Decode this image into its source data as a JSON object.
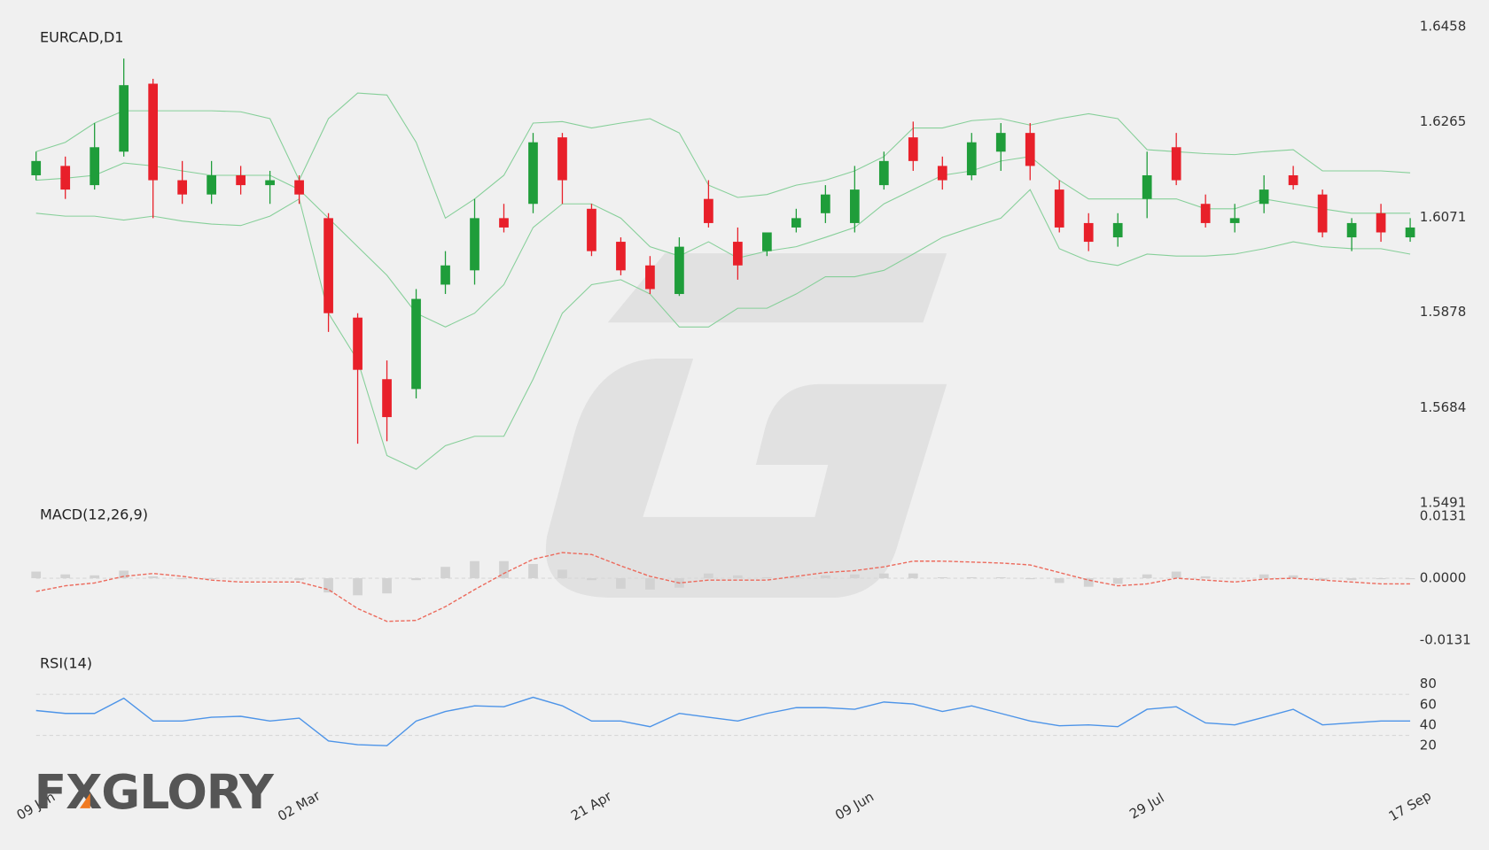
{
  "logo": "FXGLORY",
  "chart_data": [
    {
      "type": "candlestick",
      "title": "EURCAD,D1",
      "categories": [
        "09 Jan",
        null,
        null,
        null,
        null,
        null,
        null,
        null,
        null,
        "02 Mar",
        null,
        null,
        null,
        null,
        null,
        null,
        null,
        null,
        null,
        "21 Apr",
        null,
        null,
        null,
        null,
        null,
        null,
        null,
        null,
        "09 Jun",
        null,
        null,
        null,
        null,
        null,
        null,
        null,
        null,
        null,
        "29 Jul",
        null,
        null,
        null,
        null,
        null,
        null,
        null,
        null,
        "17 Sep"
      ],
      "open": [
        1.6156,
        1.6175,
        1.6136,
        1.6204,
        1.6342,
        1.6146,
        1.6117,
        1.6156,
        1.6136,
        1.6146,
        1.6069,
        1.5867,
        1.5742,
        1.5722,
        1.5934,
        1.5963,
        1.6069,
        1.6098,
        1.6233,
        1.6088,
        1.6021,
        1.5973,
        1.5915,
        1.6108,
        1.6021,
        1.6002,
        1.605,
        1.6079,
        1.6059,
        1.6136,
        1.6233,
        1.6175,
        1.6156,
        1.6204,
        1.6242,
        1.6127,
        1.6059,
        1.603,
        1.6108,
        1.6213,
        1.6098,
        1.6059,
        1.6098,
        1.6156,
        1.6117,
        1.603,
        1.6079,
        1.603
      ],
      "high": [
        1.6204,
        1.6194,
        1.6262,
        1.6393,
        1.6352,
        1.6185,
        1.6185,
        1.6175,
        1.6165,
        1.6156,
        1.6079,
        1.5876,
        1.578,
        1.5925,
        1.6002,
        1.6108,
        1.6098,
        1.6242,
        1.6242,
        1.6098,
        1.603,
        1.5992,
        1.603,
        1.6146,
        1.605,
        1.604,
        1.6088,
        1.6136,
        1.6175,
        1.6204,
        1.6265,
        1.6194,
        1.6242,
        1.6262,
        1.6262,
        1.6146,
        1.6079,
        1.6079,
        1.6204,
        1.6242,
        1.6117,
        1.6098,
        1.6156,
        1.6175,
        1.6127,
        1.6069,
        1.6098,
        1.6069
      ],
      "low": [
        1.6146,
        1.6108,
        1.6127,
        1.6194,
        1.6069,
        1.6098,
        1.6098,
        1.6117,
        1.6098,
        1.6098,
        1.5838,
        1.5611,
        1.5616,
        1.5703,
        1.5915,
        1.5934,
        1.604,
        1.6079,
        1.6098,
        1.5992,
        1.5953,
        1.5915,
        1.5911,
        1.605,
        1.5944,
        1.5992,
        1.604,
        1.6059,
        1.604,
        1.6127,
        1.6165,
        1.6127,
        1.6146,
        1.6165,
        1.6146,
        1.604,
        1.6002,
        1.6011,
        1.6069,
        1.6136,
        1.605,
        1.604,
        1.6079,
        1.6127,
        1.603,
        1.6002,
        1.6021,
        1.6021
      ],
      "close": [
        1.6185,
        1.6127,
        1.6213,
        1.6339,
        1.6146,
        1.6117,
        1.6156,
        1.6136,
        1.6146,
        1.6117,
        1.5876,
        1.5761,
        1.5665,
        1.5905,
        1.5973,
        1.6069,
        1.605,
        1.6223,
        1.6146,
        1.6002,
        1.5963,
        1.5925,
        1.6011,
        1.6059,
        1.5973,
        1.604,
        1.6069,
        1.6117,
        1.6127,
        1.6185,
        1.6185,
        1.6146,
        1.6223,
        1.6242,
        1.6175,
        1.605,
        1.6021,
        1.6059,
        1.6156,
        1.6146,
        1.6059,
        1.6069,
        1.6127,
        1.6136,
        1.604,
        1.6059,
        1.604,
        1.605
      ],
      "up_color": "#1f9d3a",
      "down_color": "#e8202a",
      "series": [
        {
          "color": "#86cf99",
          "values": [
            1.6204,
            1.6223,
            1.6262,
            1.6287,
            1.6287,
            1.6287,
            1.6287,
            1.6285,
            1.6271,
            1.6146,
            1.6271,
            1.6323,
            1.6319,
            1.6223,
            1.6069,
            1.6108,
            1.6156,
            1.6262,
            1.6265,
            1.6252,
            1.6262,
            1.6271,
            1.6242,
            1.6136,
            1.6111,
            1.6117,
            1.6136,
            1.6146,
            1.6165,
            1.6194,
            1.6252,
            1.6252,
            1.6267,
            1.6271,
            1.6258,
            1.6271,
            1.6281,
            1.6271,
            1.6208,
            1.6204,
            1.62,
            1.6198,
            1.6204,
            1.6208,
            1.6165,
            1.6165,
            1.6165,
            1.6161
          ]
        },
        {
          "color": "#86cf99",
          "values": [
            1.6146,
            1.615,
            1.6156,
            1.6181,
            1.6175,
            1.6165,
            1.6156,
            1.6156,
            1.6156,
            1.6127,
            1.6069,
            1.6011,
            1.5953,
            1.5876,
            1.5848,
            1.5876,
            1.5934,
            1.605,
            1.6098,
            1.6098,
            1.6069,
            1.6011,
            1.5992,
            1.6021,
            1.5988,
            1.6002,
            1.6011,
            1.603,
            1.605,
            1.6098,
            1.6127,
            1.6156,
            1.6165,
            1.6185,
            1.6194,
            1.6146,
            1.6108,
            1.6108,
            1.6108,
            1.6108,
            1.6088,
            1.6088,
            1.6108,
            1.6098,
            1.6088,
            1.6079,
            1.6079,
            1.6079
          ]
        },
        {
          "color": "#86cf99",
          "values": [
            1.6079,
            1.6073,
            1.6073,
            1.6065,
            1.6073,
            1.6063,
            1.6057,
            1.6054,
            1.6073,
            1.6108,
            1.5876,
            1.578,
            1.5587,
            1.5559,
            1.5607,
            1.5626,
            1.5626,
            1.5742,
            1.5876,
            1.5934,
            1.5944,
            1.5915,
            1.5848,
            1.5848,
            1.5886,
            1.5886,
            1.5915,
            1.595,
            1.595,
            1.5963,
            1.5996,
            1.603,
            1.605,
            1.6069,
            1.6127,
            1.6007,
            1.5982,
            1.5973,
            1.5996,
            1.5992,
            1.5992,
            1.5996,
            1.6007,
            1.6021,
            1.6011,
            1.6007,
            1.6007,
            1.5996
          ]
        }
      ],
      "ylim": [
        1.5491,
        1.6458
      ],
      "yticks": [
        1.5491,
        1.5684,
        1.5878,
        1.6071,
        1.6265,
        1.6458
      ]
    },
    {
      "type": "macd",
      "title": "MACD(12,26,9)",
      "histogram": {
        "color": "#d2d2d2",
        "values": [
          0.0014,
          0.0008,
          0.0006,
          0.0016,
          0.0004,
          -0.0002,
          -0.0002,
          0,
          0,
          -0.0004,
          -0.003,
          -0.0036,
          -0.0032,
          -0.0004,
          0.0024,
          0.0036,
          0.0036,
          0.003,
          0.0018,
          -0.0004,
          -0.0022,
          -0.0024,
          -0.002,
          0.001,
          0.0006,
          0.0002,
          0.0002,
          0.0006,
          0.0008,
          0.001,
          0.001,
          0.0002,
          0.0002,
          0.0002,
          -0.0002,
          -0.001,
          -0.0018,
          -0.0012,
          0.0008,
          0.0014,
          0.0004,
          0,
          0.0008,
          0.0006,
          -0.0004,
          -0.0004,
          -0.0002,
          -0.0002
        ]
      },
      "signal": {
        "color": "#ec6a5c",
        "dashed": true,
        "values": [
          -0.0028,
          -0.0016,
          -0.001,
          0.0004,
          0.001,
          0.0004,
          -0.0004,
          -0.0008,
          -0.0008,
          -0.0008,
          -0.0024,
          -0.0064,
          -0.0091,
          -0.0089,
          -0.006,
          -0.0024,
          0.001,
          0.004,
          0.0054,
          0.005,
          0.0026,
          0.0004,
          -0.001,
          -0.0004,
          -0.0004,
          -0.0004,
          0.0004,
          0.0012,
          0.0016,
          0.0024,
          0.0036,
          0.0036,
          0.0034,
          0.0032,
          0.0028,
          0.0012,
          -0.0004,
          -0.0016,
          -0.0012,
          0,
          -0.0004,
          -0.0008,
          -0.0002,
          0,
          -0.0004,
          -0.0008,
          -0.0012,
          -0.0012
        ]
      },
      "ylim": [
        -0.0131,
        0.0131
      ],
      "yticks": [
        0.0131,
        {
          "value": 0,
          "label": "0.0000"
        },
        -0.0131
      ],
      "levels": [
        0
      ]
    },
    {
      "type": "line",
      "title": "RSI(14)",
      "series": [
        {
          "color": "#4d94e8",
          "values": [
            54.2,
            51.4,
            51.4,
            66.2,
            44.0,
            44.0,
            47.7,
            48.6,
            44.0,
            46.8,
            24.6,
            21.0,
            20.0,
            44.0,
            53.3,
            58.8,
            57.9,
            67.1,
            58.8,
            44.0,
            44.0,
            38.5,
            51.4,
            47.7,
            44.0,
            51.4,
            57.0,
            57.0,
            55.4,
            62.5,
            60.6,
            53.3,
            58.8,
            51.4,
            44.0,
            39.4,
            40.3,
            38.5,
            55.4,
            57.9,
            42.2,
            40.3,
            47.7,
            55.4,
            40.3,
            42.2,
            44.0,
            44.0
          ]
        }
      ],
      "ylim": [
        0,
        100
      ],
      "yticks": [
        20,
        40,
        60,
        80
      ],
      "levels": [
        70,
        30
      ]
    }
  ]
}
